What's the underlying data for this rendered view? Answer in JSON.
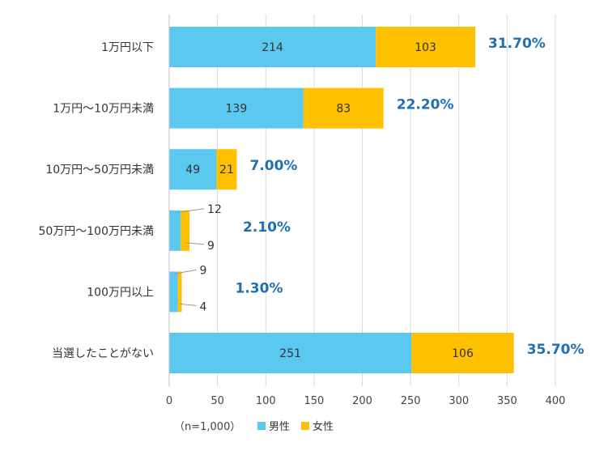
{
  "chart_data": {
    "type": "bar",
    "orientation": "horizontal",
    "stacked": true,
    "categories": [
      "1万円以下",
      "1万円～10万円未満",
      "10万円～50万円未満",
      "50万円～100万円未満",
      "100万円以上",
      "当選したことがない"
    ],
    "series": [
      {
        "name": "男性",
        "color": "#5bc8f0",
        "values": [
          214,
          139,
          49,
          12,
          9,
          251
        ]
      },
      {
        "name": "女性",
        "color": "#ffc000",
        "values": [
          103,
          83,
          21,
          9,
          4,
          106
        ]
      }
    ],
    "totals_pct": [
      "31.70%",
      "22.20%",
      "7.00%",
      "2.10%",
      "1.30%",
      "35.70%"
    ],
    "xlim": [
      0,
      400
    ],
    "xticks": [
      "0",
      "50",
      "100",
      "150",
      "200",
      "250",
      "300",
      "350",
      "400"
    ],
    "grid": "vertical",
    "legend": "bottom",
    "note": "（n=1,000）"
  }
}
